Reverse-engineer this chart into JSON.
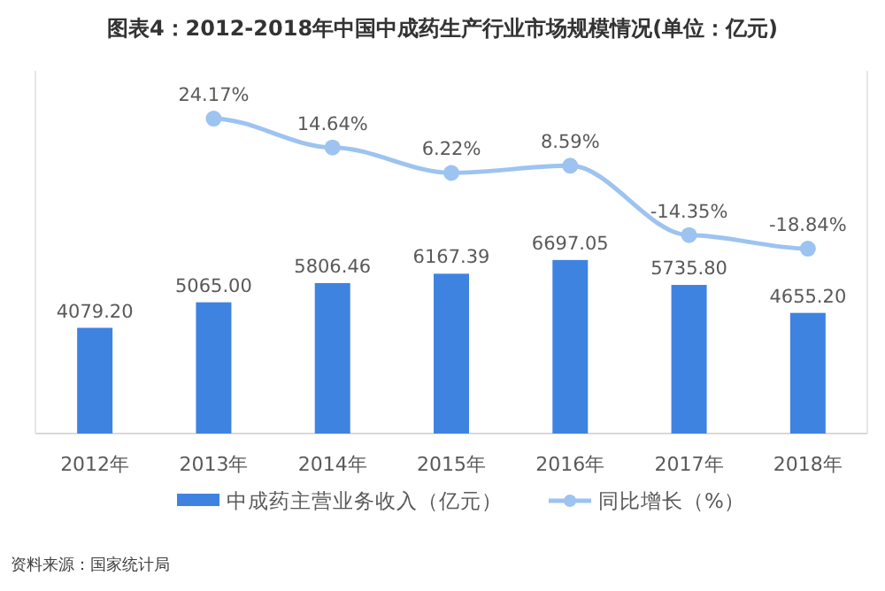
{
  "chart_data": {
    "type": "bar",
    "title": "图表4：2012-2018年中国中成药生产行业市场规模情况(单位：亿元)",
    "categories": [
      "2012年",
      "2013年",
      "2014年",
      "2015年",
      "2016年",
      "2017年",
      "2018年"
    ],
    "series": [
      {
        "name": "中成药主营业务收入（亿元）",
        "color": "#3f83e0",
        "values": [
          4079.2,
          5065.0,
          5806.46,
          6167.39,
          6697.05,
          5735.8,
          4655.2
        ],
        "value_labels": [
          "4079.20",
          "5065.00",
          "5806.46",
          "6167.39",
          "6697.05",
          "5735.80",
          "4655.20"
        ]
      },
      {
        "name": "同比增长（%）",
        "type": "line",
        "axis": "y2",
        "color": "#9dc3f0",
        "values": [
          null,
          24.17,
          14.64,
          6.22,
          8.59,
          -14.35,
          -18.84
        ],
        "value_labels": [
          null,
          "24.17%",
          "14.64%",
          "6.22%",
          "8.59%",
          "-14.35%",
          "-18.84%"
        ]
      }
    ],
    "ylim": [
      0,
      14000
    ],
    "y2lim": [
      -80,
      40
    ],
    "tick_labels": "x",
    "data_labels": true,
    "marker": "circle",
    "legend": "bottom",
    "grid": false,
    "annotations": [
      "资料来源：国家统计局"
    ]
  }
}
